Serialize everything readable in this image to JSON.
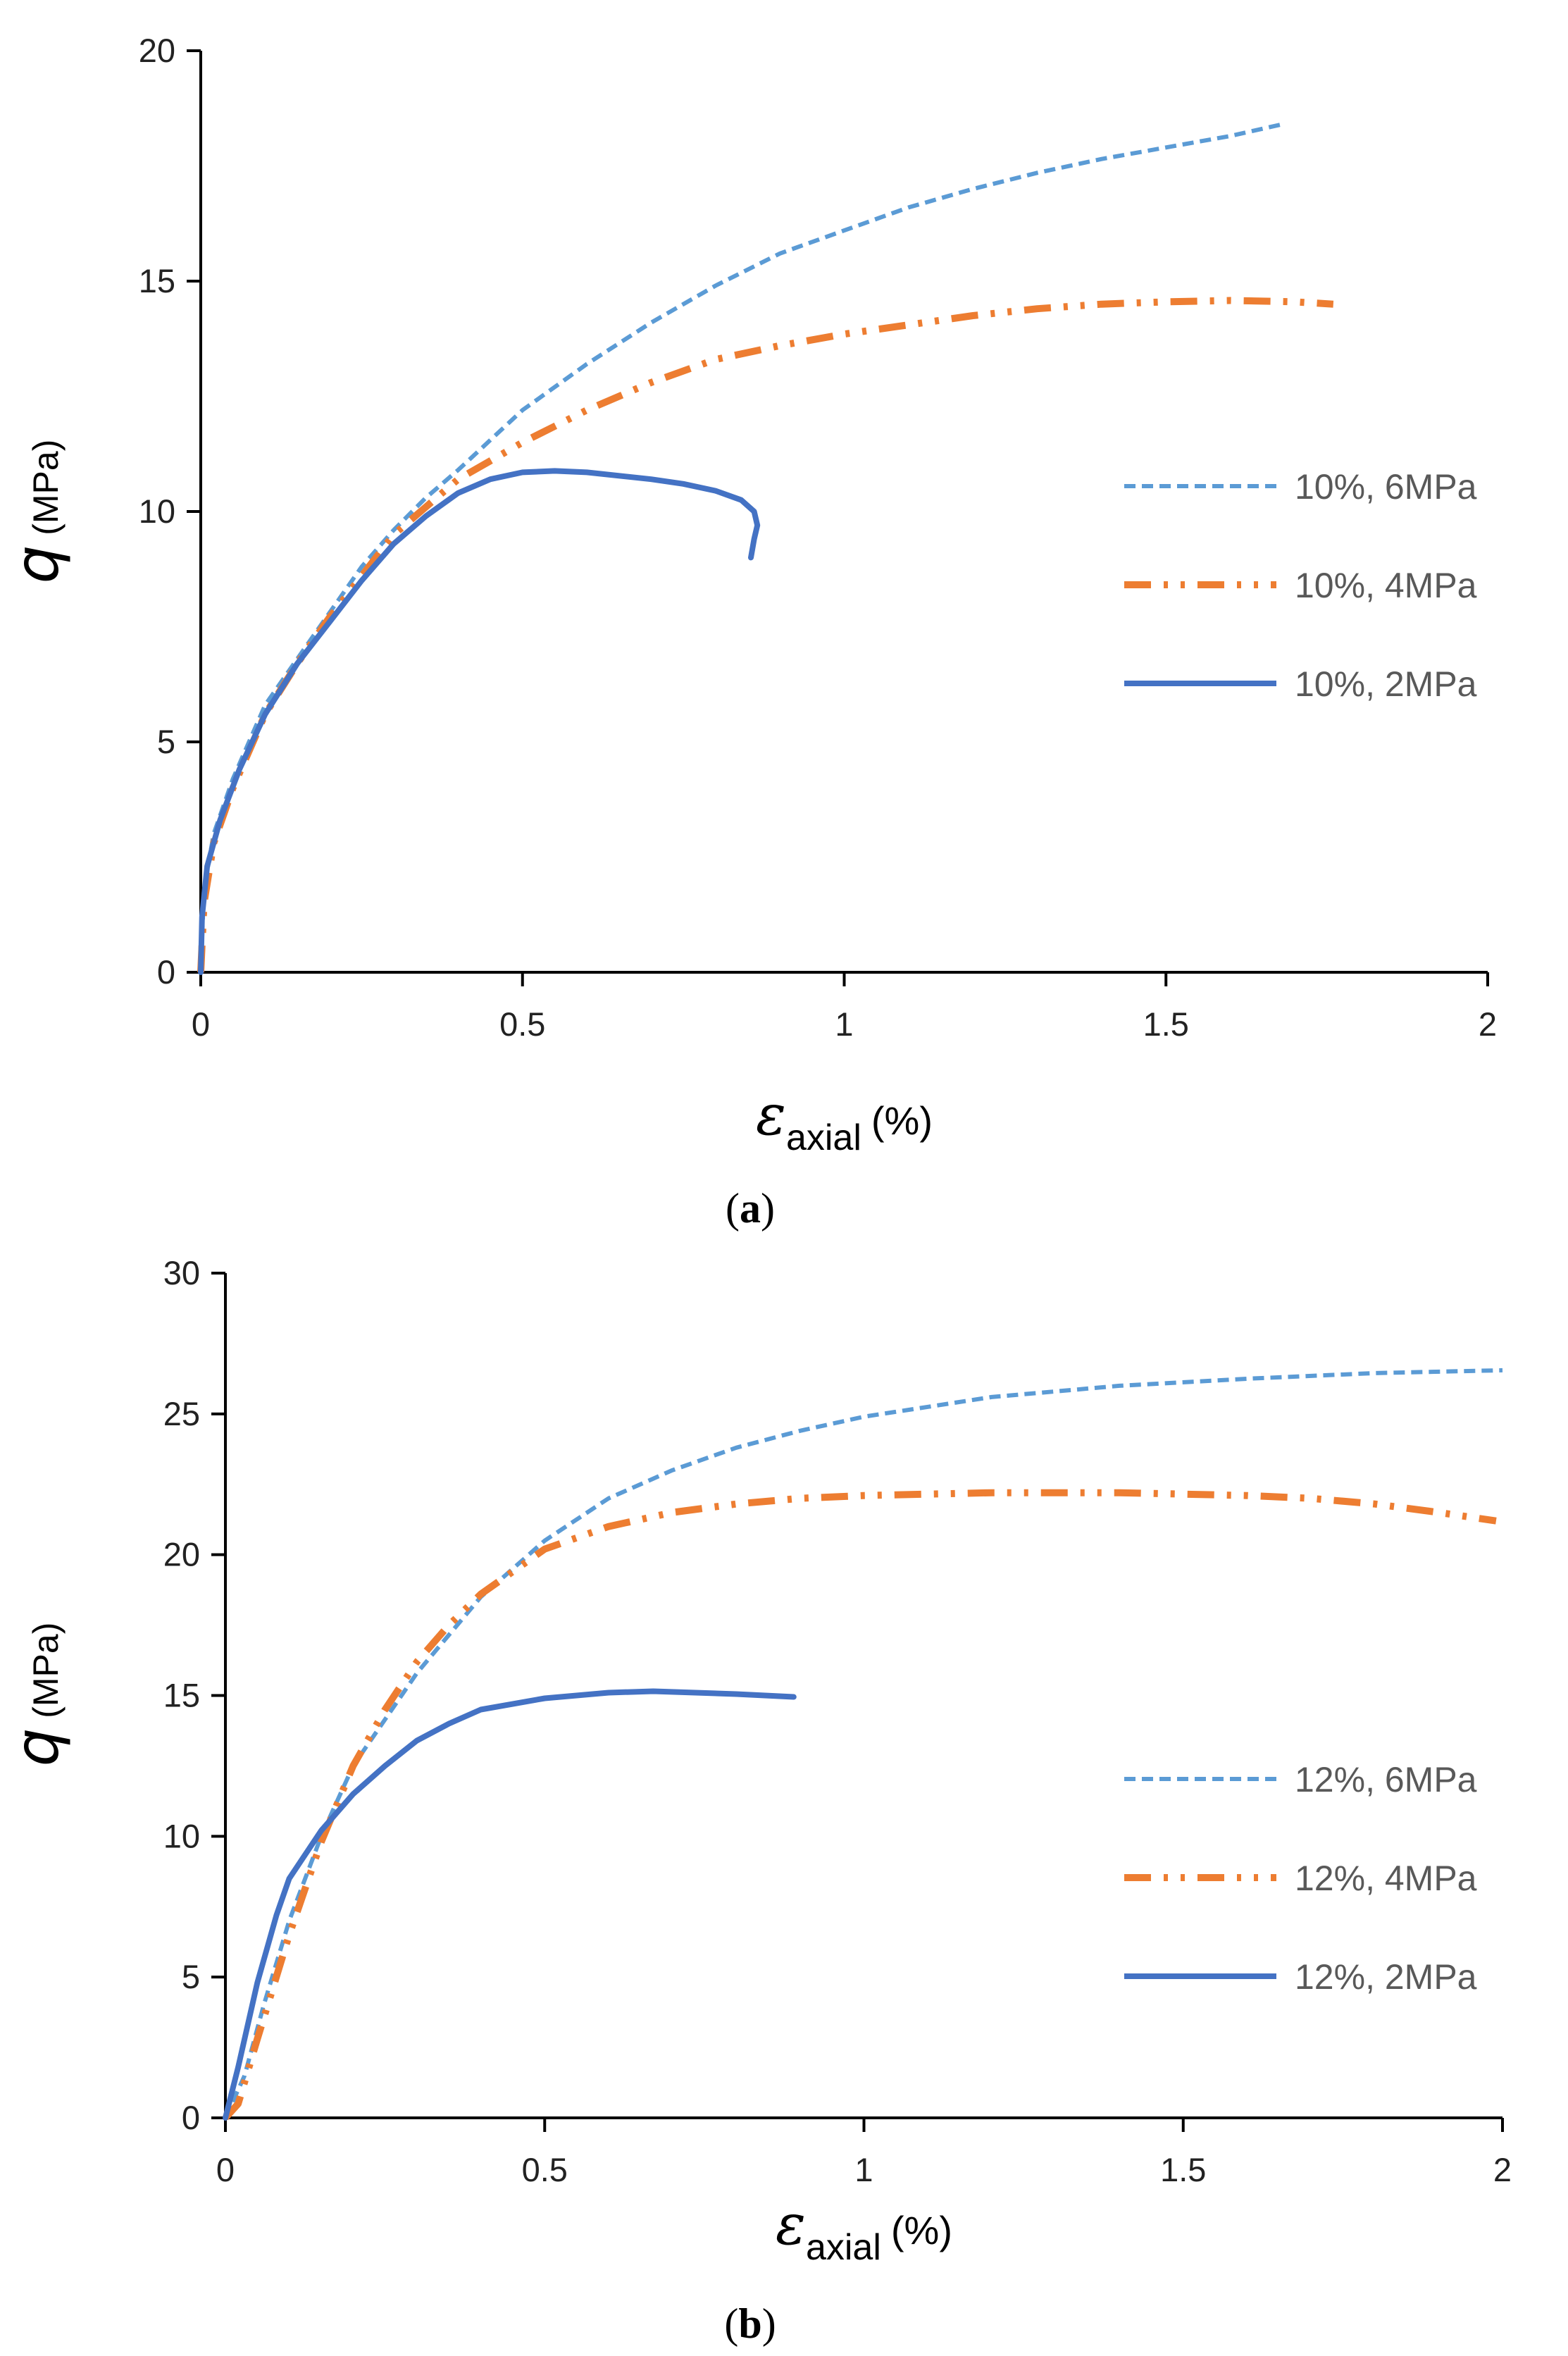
{
  "colors": {
    "series_6mpa": "#5b9bd5",
    "series_4mpa": "#ed7d31",
    "series_2mpa": "#4472c4",
    "axis": "#000000",
    "legend_text": "#595959"
  },
  "chart_data": [
    {
      "id": "a",
      "type": "line",
      "panel_label": "a",
      "xlabel": {
        "symbol": "ε",
        "subscript": "axial",
        "unit": "(%)"
      },
      "ylabel": {
        "symbol": "q",
        "unit": "(MPa)"
      },
      "xlim": [
        0,
        2
      ],
      "ylim": [
        0,
        20
      ],
      "xticks": [
        0,
        0.5,
        1,
        1.5,
        2
      ],
      "xtick_labels": [
        "0",
        "0.5",
        "1",
        "1.5",
        "2"
      ],
      "yticks": [
        0,
        5,
        10,
        15,
        20
      ],
      "ytick_labels": [
        "0",
        "5",
        "10",
        "15",
        "20"
      ],
      "grid": false,
      "legend_position": "right",
      "series": [
        {
          "name": "10%, 6MPa",
          "style": "dashed",
          "color": "#5b9bd5",
          "points": [
            [
              0,
              0
            ],
            [
              0.005,
              1.8
            ],
            [
              0.02,
              3
            ],
            [
              0.05,
              4.2
            ],
            [
              0.1,
              5.8
            ],
            [
              0.15,
              6.8
            ],
            [
              0.2,
              7.8
            ],
            [
              0.25,
              8.8
            ],
            [
              0.3,
              9.6
            ],
            [
              0.35,
              10.3
            ],
            [
              0.4,
              10.9
            ],
            [
              0.5,
              12.2
            ],
            [
              0.6,
              13.2
            ],
            [
              0.7,
              14.1
            ],
            [
              0.8,
              14.9
            ],
            [
              0.9,
              15.6
            ],
            [
              1.0,
              16.1
            ],
            [
              1.1,
              16.6
            ],
            [
              1.2,
              17.0
            ],
            [
              1.3,
              17.35
            ],
            [
              1.4,
              17.65
            ],
            [
              1.5,
              17.9
            ],
            [
              1.6,
              18.15
            ],
            [
              1.68,
              18.4
            ]
          ]
        },
        {
          "name": "10%, 4MPa",
          "style": "dash-dot-dot",
          "color": "#ed7d31",
          "points": [
            [
              0,
              0
            ],
            [
              0.005,
              1.5
            ],
            [
              0.02,
              2.8
            ],
            [
              0.05,
              4.0
            ],
            [
              0.1,
              5.6
            ],
            [
              0.15,
              6.7
            ],
            [
              0.2,
              7.7
            ],
            [
              0.25,
              8.6
            ],
            [
              0.3,
              9.5
            ],
            [
              0.35,
              10.1
            ],
            [
              0.4,
              10.7
            ],
            [
              0.45,
              11.1
            ],
            [
              0.5,
              11.5
            ],
            [
              0.6,
              12.2
            ],
            [
              0.7,
              12.8
            ],
            [
              0.8,
              13.3
            ],
            [
              0.9,
              13.6
            ],
            [
              1.0,
              13.85
            ],
            [
              1.1,
              14.05
            ],
            [
              1.2,
              14.25
            ],
            [
              1.3,
              14.4
            ],
            [
              1.4,
              14.5
            ],
            [
              1.5,
              14.55
            ],
            [
              1.6,
              14.58
            ],
            [
              1.7,
              14.55
            ],
            [
              1.76,
              14.5
            ]
          ]
        },
        {
          "name": "10%, 2MPa",
          "style": "solid",
          "color": "#4472c4",
          "points": [
            [
              0,
              0
            ],
            [
              0.002,
              1.2
            ],
            [
              0.01,
              2.3
            ],
            [
              0.03,
              3.3
            ],
            [
              0.06,
              4.4
            ],
            [
              0.1,
              5.6
            ],
            [
              0.15,
              6.7
            ],
            [
              0.2,
              7.6
            ],
            [
              0.25,
              8.5
            ],
            [
              0.3,
              9.3
            ],
            [
              0.35,
              9.9
            ],
            [
              0.4,
              10.4
            ],
            [
              0.45,
              10.7
            ],
            [
              0.5,
              10.85
            ],
            [
              0.55,
              10.88
            ],
            [
              0.6,
              10.85
            ],
            [
              0.7,
              10.7
            ],
            [
              0.75,
              10.6
            ],
            [
              0.8,
              10.45
            ],
            [
              0.84,
              10.25
            ],
            [
              0.86,
              10.0
            ],
            [
              0.865,
              9.7
            ],
            [
              0.86,
              9.4
            ],
            [
              0.855,
              9.0
            ]
          ]
        }
      ]
    },
    {
      "id": "b",
      "type": "line",
      "panel_label": "b",
      "xlabel": {
        "symbol": "ε",
        "subscript": "axial",
        "unit": "(%)"
      },
      "ylabel": {
        "symbol": "q",
        "unit": "(MPa)"
      },
      "xlim": [
        0,
        2
      ],
      "ylim": [
        0,
        30
      ],
      "xticks": [
        0,
        0.5,
        1,
        1.5,
        2
      ],
      "xtick_labels": [
        "0",
        "0.5",
        "1",
        "1.5",
        "2"
      ],
      "yticks": [
        0,
        5,
        10,
        15,
        20,
        25,
        30
      ],
      "ytick_labels": [
        "0",
        "5",
        "10",
        "15",
        "20",
        "25",
        "30"
      ],
      "grid": false,
      "legend_position": "bottom-right",
      "series": [
        {
          "name": "12%, 6MPa",
          "style": "dashed",
          "color": "#5b9bd5",
          "points": [
            [
              0,
              0
            ],
            [
              0.03,
              1.5
            ],
            [
              0.06,
              4
            ],
            [
              0.1,
              7
            ],
            [
              0.15,
              10
            ],
            [
              0.2,
              12.5
            ],
            [
              0.3,
              15.8
            ],
            [
              0.4,
              18.5
            ],
            [
              0.5,
              20.5
            ],
            [
              0.6,
              22
            ],
            [
              0.7,
              23
            ],
            [
              0.8,
              23.8
            ],
            [
              0.9,
              24.4
            ],
            [
              1.0,
              24.9
            ],
            [
              1.2,
              25.6
            ],
            [
              1.4,
              26.0
            ],
            [
              1.6,
              26.25
            ],
            [
              1.8,
              26.45
            ],
            [
              2.0,
              26.55
            ]
          ]
        },
        {
          "name": "12%, 4MPa",
          "style": "dash-dot-dot",
          "color": "#ed7d31",
          "points": [
            [
              0,
              0
            ],
            [
              0.02,
              0.5
            ],
            [
              0.05,
              2.8
            ],
            [
              0.1,
              6.5
            ],
            [
              0.15,
              9.8
            ],
            [
              0.2,
              12.5
            ],
            [
              0.25,
              14.5
            ],
            [
              0.3,
              16.2
            ],
            [
              0.35,
              17.5
            ],
            [
              0.4,
              18.6
            ],
            [
              0.5,
              20.2
            ],
            [
              0.6,
              21
            ],
            [
              0.7,
              21.5
            ],
            [
              0.8,
              21.8
            ],
            [
              0.9,
              22
            ],
            [
              1.0,
              22.1
            ],
            [
              1.2,
              22.2
            ],
            [
              1.4,
              22.2
            ],
            [
              1.6,
              22.1
            ],
            [
              1.7,
              22.0
            ],
            [
              1.8,
              21.8
            ],
            [
              1.9,
              21.5
            ],
            [
              1.99,
              21.2
            ]
          ]
        },
        {
          "name": "12%, 2MPa",
          "style": "solid",
          "color": "#4472c4",
          "points": [
            [
              0,
              0
            ],
            [
              0.02,
              1.8
            ],
            [
              0.05,
              4.8
            ],
            [
              0.08,
              7.2
            ],
            [
              0.1,
              8.5
            ],
            [
              0.15,
              10.2
            ],
            [
              0.2,
              11.5
            ],
            [
              0.25,
              12.5
            ],
            [
              0.3,
              13.4
            ],
            [
              0.35,
              14
            ],
            [
              0.4,
              14.5
            ],
            [
              0.5,
              14.9
            ],
            [
              0.6,
              15.1
            ],
            [
              0.67,
              15.15
            ],
            [
              0.8,
              15.05
            ],
            [
              0.89,
              14.95
            ]
          ]
        }
      ]
    }
  ]
}
